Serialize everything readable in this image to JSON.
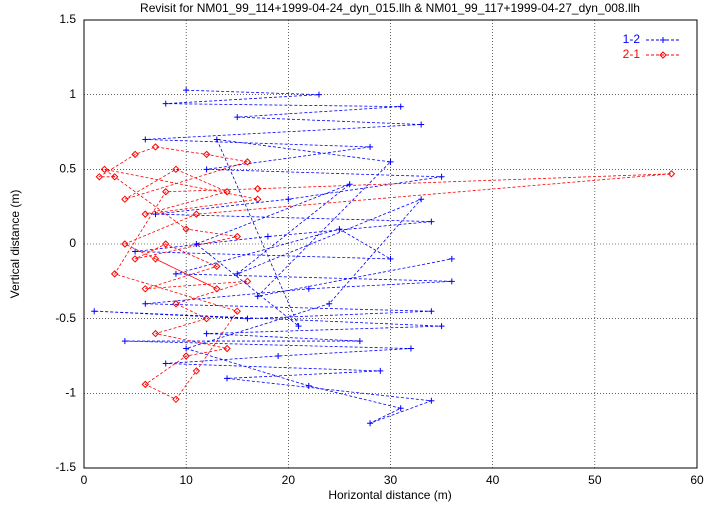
{
  "chart_data": {
    "type": "line",
    "title": "Revisit for NM01_99_114+1999-04-24_dyn_015.llh & NM01_99_117+1999-04-27_dyn_008.llh",
    "x_label": "Horizontal distance (m)",
    "y_label": "Vertical distance (m)",
    "xlim": [
      0,
      60
    ],
    "xticks": [
      0,
      10,
      20,
      30,
      40,
      50,
      60
    ],
    "ylim": [
      -1.5,
      1.5
    ],
    "yticks": [
      -1.5,
      -1,
      -0.5,
      0,
      0.5,
      1,
      1.5
    ],
    "grid": true,
    "legend": "top-right",
    "series": [
      {
        "name": "1-2",
        "color": "#0000ff",
        "marker": "plus",
        "x": [
          10,
          23,
          8,
          31,
          15,
          33,
          6,
          28,
          12,
          35,
          20,
          7,
          34,
          18,
          5,
          30,
          25,
          9,
          36,
          22,
          6,
          34,
          16,
          1,
          35,
          12,
          27,
          4,
          32,
          19,
          8,
          29,
          14,
          34,
          28,
          31,
          22,
          10,
          24,
          33,
          15,
          26,
          11,
          21,
          13,
          30,
          17,
          36
        ],
        "values": [
          1.03,
          1.0,
          0.94,
          0.92,
          0.85,
          0.8,
          0.7,
          0.65,
          0.5,
          0.45,
          0.3,
          0.2,
          0.15,
          0.05,
          -0.05,
          -0.1,
          0.1,
          -0.2,
          -0.25,
          -0.3,
          -0.4,
          -0.45,
          -0.5,
          -0.45,
          -0.55,
          -0.6,
          -0.65,
          -0.65,
          -0.7,
          -0.75,
          -0.8,
          -0.85,
          -0.9,
          -1.05,
          -1.2,
          -1.1,
          -0.95,
          -0.7,
          -0.4,
          0.3,
          -0.2,
          0.4,
          0.0,
          -0.55,
          0.7,
          0.55,
          -0.35,
          -0.1
        ]
      },
      {
        "name": "2-1",
        "color": "#ff0000",
        "marker": "diamond",
        "x": [
          3,
          1.5,
          5,
          7,
          12,
          16,
          4,
          9,
          14,
          6,
          17,
          2,
          10,
          15,
          5,
          8,
          13,
          6,
          16,
          9,
          12,
          7,
          14,
          10,
          6,
          9,
          11,
          15,
          3,
          8,
          17,
          57.5,
          11,
          4,
          13,
          7
        ],
        "values": [
          0.45,
          0.45,
          0.6,
          0.65,
          0.6,
          0.55,
          0.3,
          0.5,
          0.35,
          0.2,
          0.3,
          0.5,
          0.1,
          0.05,
          -0.1,
          0.0,
          -0.15,
          -0.3,
          -0.25,
          -0.4,
          -0.5,
          -0.6,
          -0.7,
          -0.75,
          -0.94,
          -1.04,
          -0.85,
          -0.45,
          -0.2,
          0.35,
          0.37,
          0.47,
          0.2,
          0.0,
          -0.3,
          -0.1
        ]
      }
    ]
  }
}
